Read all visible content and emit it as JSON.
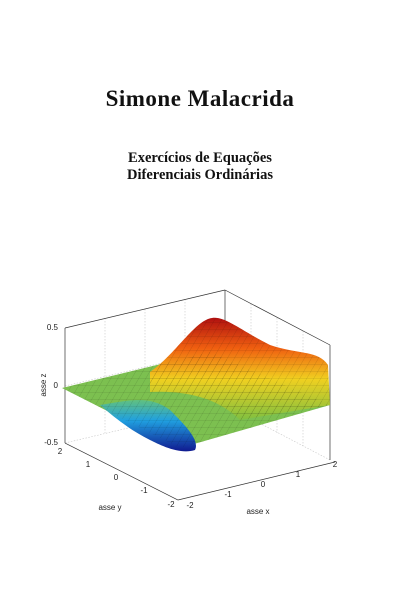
{
  "header": {
    "author": "Simone Malacrida",
    "title": [
      "Exercícios de Equações",
      "Diferenciais Ordinárias"
    ]
  },
  "figure": {
    "z_label": "asse z",
    "y_label": "asse y",
    "x_label": "asse x",
    "z_ticks": [
      "0.5",
      "0",
      "-0.5"
    ],
    "y_ticks": [
      "2",
      "1",
      "0",
      "-1",
      "-2"
    ],
    "x_ticks": [
      "-2",
      "-1",
      "0",
      "1",
      "2"
    ]
  }
}
